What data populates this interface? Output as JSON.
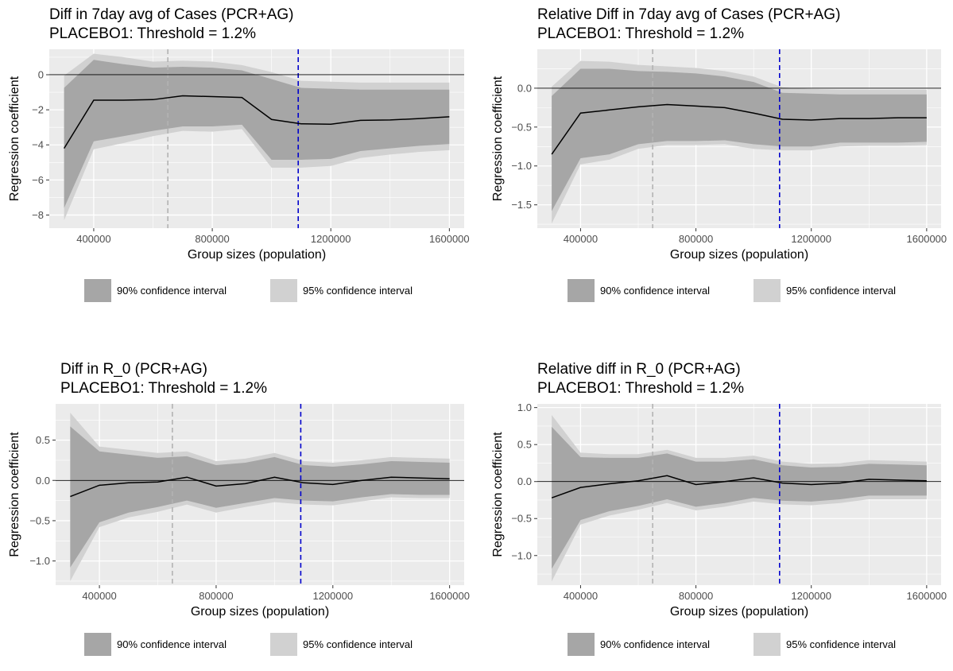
{
  "colors": {
    "panel_bg": "#ebebeb",
    "grid_major": "#ffffff",
    "ci90_fill": "#a6a6a6",
    "ci95_fill": "#d1d1d1",
    "estimate_line": "#000000",
    "zero_line": "#000000",
    "vline_gray": "#b3b3b3",
    "vline_blue": "#0000cc",
    "axis_text": "#4d4d4d"
  },
  "legend": {
    "items": [
      {
        "label": "90% confidence interval",
        "color": "#a6a6a6"
      },
      {
        "label": "95% confidence interval",
        "color": "#d1d1d1"
      }
    ]
  },
  "chart_data": [
    {
      "type": "line",
      "title": "Diff in 7day avg of Cases (PCR+AG)",
      "subtitle": "PLACEBO1: Threshold = 1.2%",
      "xlabel": "Group sizes (population)",
      "ylabel": "Regression coefficient",
      "x_ticks": [
        400000,
        800000,
        1200000,
        1600000
      ],
      "x_tick_labels": [
        "400000",
        "800000",
        "1200000",
        "1600000"
      ],
      "y_ticks": [
        0,
        -2,
        -4,
        -6,
        -8
      ],
      "y_tick_labels": [
        "0",
        "−2",
        "−4",
        "−6",
        "−8"
      ],
      "xlim": [
        250000,
        1650000
      ],
      "ylim": [
        -8.75,
        1.45
      ],
      "grid": true,
      "legend_position": "bottom",
      "hline": 0,
      "vlines": [
        {
          "x": 650000,
          "color": "gray",
          "style": "dashed"
        },
        {
          "x": 1090000,
          "color": "blue",
          "style": "dashed"
        }
      ],
      "x": [
        300000,
        400000,
        500000,
        600000,
        700000,
        800000,
        900000,
        1000000,
        1100000,
        1200000,
        1300000,
        1400000,
        1500000,
        1600000
      ],
      "series": [
        {
          "name": "estimate",
          "values": [
            -4.2,
            -1.45,
            -1.45,
            -1.42,
            -1.2,
            -1.25,
            -1.3,
            -2.55,
            -2.8,
            -2.82,
            -2.6,
            -2.58,
            -2.5,
            -2.4
          ]
        },
        {
          "name": "90% confidence interval lower",
          "values": [
            -7.6,
            -3.8,
            -3.5,
            -3.2,
            -2.95,
            -2.95,
            -2.85,
            -4.85,
            -4.85,
            -4.8,
            -4.35,
            -4.2,
            -4.05,
            -3.95
          ]
        },
        {
          "name": "90% confidence interval upper",
          "values": [
            -0.75,
            0.85,
            0.6,
            0.4,
            0.45,
            0.4,
            0.25,
            -0.25,
            -0.75,
            -0.8,
            -0.85,
            -0.85,
            -0.85,
            -0.85
          ]
        },
        {
          "name": "95% confidence interval lower",
          "values": [
            -8.3,
            -4.25,
            -3.9,
            -3.5,
            -3.2,
            -3.25,
            -3.1,
            -5.3,
            -5.3,
            -5.2,
            -4.75,
            -4.55,
            -4.4,
            -4.3
          ]
        },
        {
          "name": "95% confidence interval upper",
          "values": [
            -0.05,
            1.2,
            1.0,
            0.75,
            0.8,
            0.75,
            0.55,
            0.15,
            -0.35,
            -0.4,
            -0.45,
            -0.45,
            -0.45,
            -0.45
          ]
        }
      ]
    },
    {
      "type": "line",
      "title": "Relative Diff in 7day avg of Cases (PCR+AG)",
      "subtitle": "PLACEBO1: Threshold = 1.2%",
      "xlabel": "Group sizes (population)",
      "ylabel": "Regression coefficient",
      "x_ticks": [
        400000,
        800000,
        1200000,
        1600000
      ],
      "x_tick_labels": [
        "400000",
        "800000",
        "1200000",
        "1600000"
      ],
      "y_ticks": [
        0.0,
        -0.5,
        -1.0,
        -1.5
      ],
      "y_tick_labels": [
        "0.0",
        "−0.5",
        "−1.0",
        "−1.5"
      ],
      "xlim": [
        250000,
        1650000
      ],
      "ylim": [
        -1.8,
        0.5
      ],
      "grid": true,
      "legend_position": "bottom",
      "hline": 0,
      "vlines": [
        {
          "x": 650000,
          "color": "gray",
          "style": "dashed"
        },
        {
          "x": 1090000,
          "color": "blue",
          "style": "dashed"
        }
      ],
      "x": [
        300000,
        400000,
        500000,
        600000,
        700000,
        800000,
        900000,
        1000000,
        1100000,
        1200000,
        1300000,
        1400000,
        1500000,
        1600000
      ],
      "series": [
        {
          "name": "estimate",
          "values": [
            -0.85,
            -0.32,
            -0.28,
            -0.24,
            -0.21,
            -0.23,
            -0.25,
            -0.32,
            -0.4,
            -0.41,
            -0.39,
            -0.39,
            -0.38,
            -0.38
          ]
        },
        {
          "name": "90% confidence interval lower",
          "values": [
            -1.58,
            -0.9,
            -0.85,
            -0.72,
            -0.68,
            -0.68,
            -0.67,
            -0.72,
            -0.75,
            -0.75,
            -0.7,
            -0.7,
            -0.7,
            -0.69
          ]
        },
        {
          "name": "90% confidence interval upper",
          "values": [
            -0.1,
            0.25,
            0.25,
            0.22,
            0.21,
            0.19,
            0.15,
            0.08,
            -0.06,
            -0.07,
            -0.08,
            -0.08,
            -0.08,
            -0.08
          ]
        },
        {
          "name": "95% confidence interval lower",
          "values": [
            -1.74,
            -0.98,
            -0.92,
            -0.78,
            -0.73,
            -0.73,
            -0.72,
            -0.78,
            -0.8,
            -0.8,
            -0.75,
            -0.74,
            -0.74,
            -0.73
          ]
        },
        {
          "name": "95% confidence interval upper",
          "values": [
            0.02,
            0.35,
            0.34,
            0.3,
            0.28,
            0.26,
            0.22,
            0.15,
            0.01,
            -0.01,
            -0.02,
            -0.02,
            -0.02,
            -0.02
          ]
        }
      ]
    },
    {
      "type": "line",
      "title": "Diff in R_0 (PCR+AG)",
      "subtitle": "PLACEBO1: Threshold = 1.2%",
      "xlabel": "Group sizes (population)",
      "ylabel": "Regression coefficient",
      "x_ticks": [
        400000,
        800000,
        1200000,
        1600000
      ],
      "x_tick_labels": [
        "400000",
        "800000",
        "1200000",
        "1600000"
      ],
      "y_ticks": [
        0.5,
        0.0,
        -0.5,
        -1.0
      ],
      "y_tick_labels": [
        "0.5",
        "0.0",
        "−0.5",
        "−1.0"
      ],
      "xlim": [
        250000,
        1650000
      ],
      "ylim": [
        -1.3,
        0.95
      ],
      "grid": true,
      "legend_position": "bottom",
      "hline": 0,
      "vlines": [
        {
          "x": 650000,
          "color": "gray",
          "style": "dashed"
        },
        {
          "x": 1090000,
          "color": "blue",
          "style": "dashed"
        }
      ],
      "x": [
        300000,
        400000,
        500000,
        600000,
        700000,
        800000,
        900000,
        1000000,
        1100000,
        1200000,
        1300000,
        1400000,
        1500000,
        1600000
      ],
      "series": [
        {
          "name": "estimate",
          "values": [
            -0.2,
            -0.06,
            -0.03,
            -0.02,
            0.04,
            -0.07,
            -0.04,
            0.04,
            -0.03,
            -0.05,
            0.0,
            0.04,
            0.03,
            0.02
          ]
        },
        {
          "name": "90% confidence interval lower",
          "values": [
            -1.08,
            -0.52,
            -0.4,
            -0.33,
            -0.25,
            -0.34,
            -0.28,
            -0.22,
            -0.25,
            -0.26,
            -0.21,
            -0.17,
            -0.18,
            -0.18
          ]
        },
        {
          "name": "90% confidence interval upper",
          "values": [
            0.67,
            0.36,
            0.32,
            0.28,
            0.3,
            0.19,
            0.22,
            0.29,
            0.19,
            0.17,
            0.2,
            0.24,
            0.23,
            0.22
          ]
        },
        {
          "name": "95% confidence interval lower",
          "values": [
            -1.25,
            -0.58,
            -0.46,
            -0.39,
            -0.3,
            -0.4,
            -0.33,
            -0.27,
            -0.3,
            -0.31,
            -0.26,
            -0.21,
            -0.22,
            -0.22
          ]
        },
        {
          "name": "95% confidence interval upper",
          "values": [
            0.84,
            0.42,
            0.38,
            0.34,
            0.36,
            0.24,
            0.27,
            0.34,
            0.24,
            0.22,
            0.25,
            0.29,
            0.28,
            0.27
          ]
        }
      ]
    },
    {
      "type": "line",
      "title": "Relative diff in R_0 (PCR+AG)",
      "subtitle": "PLACEBO1: Threshold = 1.2%",
      "xlabel": "Group sizes (population)",
      "ylabel": "Regression coefficient",
      "x_ticks": [
        400000,
        800000,
        1200000,
        1600000
      ],
      "x_tick_labels": [
        "400000",
        "800000",
        "1200000",
        "1600000"
      ],
      "y_ticks": [
        1.0,
        0.5,
        0.0,
        -0.5,
        -1.0
      ],
      "y_tick_labels": [
        "1.0",
        "0.5",
        "0.0",
        "−0.5",
        "−1.0"
      ],
      "xlim": [
        250000,
        1650000
      ],
      "ylim": [
        -1.4,
        1.05
      ],
      "grid": true,
      "legend_position": "bottom",
      "hline": 0,
      "vlines": [
        {
          "x": 650000,
          "color": "gray",
          "style": "dashed"
        },
        {
          "x": 1090000,
          "color": "blue",
          "style": "dashed"
        }
      ],
      "x": [
        300000,
        400000,
        500000,
        600000,
        700000,
        800000,
        900000,
        1000000,
        1100000,
        1200000,
        1300000,
        1400000,
        1500000,
        1600000
      ],
      "series": [
        {
          "name": "estimate",
          "values": [
            -0.22,
            -0.08,
            -0.03,
            0.01,
            0.08,
            -0.04,
            0.0,
            0.05,
            -0.02,
            -0.04,
            -0.02,
            0.03,
            0.02,
            0.01
          ]
        },
        {
          "name": "90% confidence interval lower",
          "values": [
            -1.18,
            -0.52,
            -0.4,
            -0.33,
            -0.24,
            -0.34,
            -0.29,
            -0.22,
            -0.26,
            -0.27,
            -0.24,
            -0.19,
            -0.19,
            -0.19
          ]
        },
        {
          "name": "90% confidence interval upper",
          "values": [
            0.74,
            0.33,
            0.32,
            0.32,
            0.38,
            0.27,
            0.27,
            0.3,
            0.22,
            0.19,
            0.2,
            0.24,
            0.23,
            0.22
          ]
        },
        {
          "name": "95% confidence interval lower",
          "values": [
            -1.35,
            -0.58,
            -0.46,
            -0.38,
            -0.29,
            -0.39,
            -0.34,
            -0.27,
            -0.31,
            -0.32,
            -0.29,
            -0.24,
            -0.24,
            -0.24
          ]
        },
        {
          "name": "95% confidence interval upper",
          "values": [
            0.9,
            0.39,
            0.37,
            0.37,
            0.43,
            0.32,
            0.32,
            0.35,
            0.27,
            0.24,
            0.25,
            0.29,
            0.28,
            0.27
          ]
        }
      ]
    }
  ]
}
